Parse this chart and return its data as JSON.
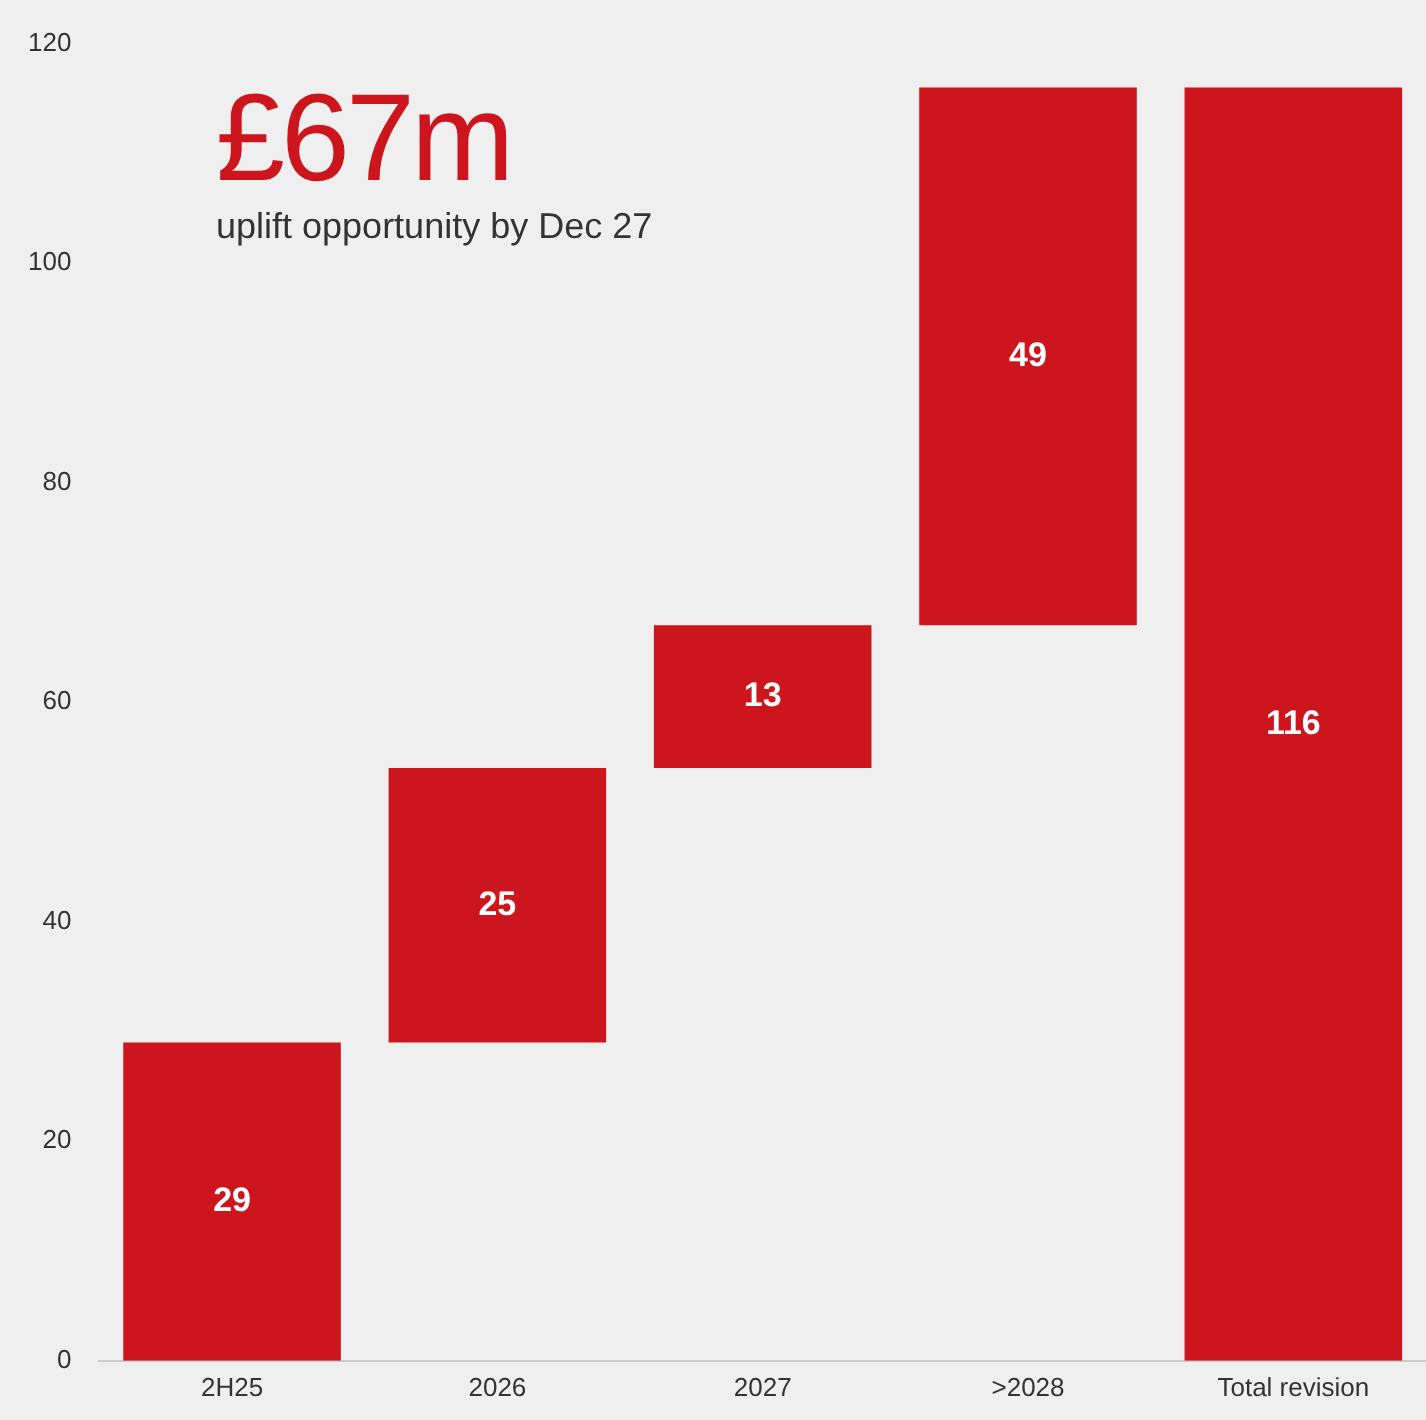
{
  "chart_data": {
    "type": "bar",
    "categories": [
      "2H25",
      "2026",
      "2027",
      ">2028",
      "Total revision"
    ],
    "values": [
      29,
      25,
      13,
      49,
      116
    ],
    "base": [
      0,
      29,
      54,
      67,
      0
    ],
    "color": "#cc151c",
    "ylim": [
      0,
      120
    ],
    "yticks": [
      0,
      20,
      40,
      60,
      80,
      100,
      120
    ],
    "grid": false,
    "legend": false,
    "data_labels": true,
    "annotations": [
      "£67m",
      "uplift opportunity by Dec 27"
    ]
  }
}
